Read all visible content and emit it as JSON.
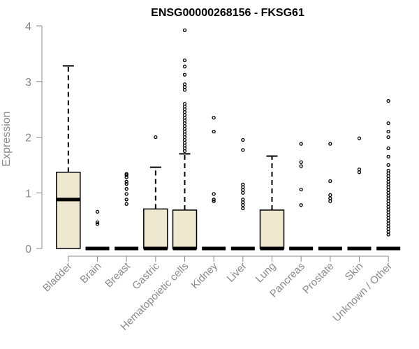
{
  "chart_data": {
    "type": "box",
    "title": "ENSG00000268156 - FKSG61",
    "ylabel": "Expression",
    "xlabel": "",
    "ylim": [
      0,
      4
    ],
    "yticks": [
      "0",
      "1",
      "2",
      "3",
      "4"
    ],
    "grid": false,
    "box_fill": "#efe8d0",
    "categories": [
      "Bladder",
      "Brain",
      "Breast",
      "Gastric",
      "Hematopoietic cells",
      "Kidney",
      "Liver",
      "Lung",
      "Pancreas",
      "Prostate",
      "Skin",
      "Unknown / Other"
    ],
    "boxes": [
      {
        "min": 0,
        "q1": 0,
        "median": 0.88,
        "q3": 1.37,
        "max": 3.28,
        "outliers": []
      },
      {
        "min": 0,
        "q1": 0,
        "median": 0,
        "q3": 0,
        "max": 0,
        "outliers": [
          0.44,
          0.47,
          0.66
        ]
      },
      {
        "min": 0,
        "q1": 0,
        "median": 0,
        "q3": 0,
        "max": 0,
        "outliers": [
          0.8,
          0.88,
          0.98,
          1.07,
          1.16,
          1.2,
          1.28,
          1.32,
          1.34
        ]
      },
      {
        "min": 0,
        "q1": 0,
        "median": 0,
        "q3": 0.71,
        "max": 1.46,
        "outliers": [
          2.0
        ]
      },
      {
        "min": 0,
        "q1": 0,
        "median": 0,
        "q3": 0.69,
        "max": 1.7,
        "outliers": [
          1.75,
          1.8,
          1.85,
          1.9,
          1.95,
          2.0,
          2.05,
          2.1,
          2.15,
          2.2,
          2.25,
          2.3,
          2.35,
          2.4,
          2.45,
          2.5,
          2.55,
          2.6,
          2.85,
          2.9,
          2.95,
          3.12,
          3.27,
          3.38,
          3.92
        ]
      },
      {
        "min": 0,
        "q1": 0,
        "median": 0,
        "q3": 0,
        "max": 0,
        "outliers": [
          0.85,
          0.88,
          0.98,
          2.1,
          2.35
        ]
      },
      {
        "min": 0,
        "q1": 0,
        "median": 0,
        "q3": 0,
        "max": 0,
        "outliers": [
          0.72,
          0.78,
          0.83,
          0.88,
          1.0,
          1.05,
          1.1,
          1.15,
          1.77,
          1.95
        ]
      },
      {
        "min": 0,
        "q1": 0,
        "median": 0,
        "q3": 0.69,
        "max": 1.66,
        "outliers": []
      },
      {
        "min": 0,
        "q1": 0,
        "median": 0,
        "q3": 0,
        "max": 0,
        "outliers": [
          0.78,
          1.06,
          1.48,
          1.55,
          1.88
        ]
      },
      {
        "min": 0,
        "q1": 0,
        "median": 0,
        "q3": 0,
        "max": 0,
        "outliers": [
          0.85,
          0.9,
          0.96,
          1.21,
          1.88
        ]
      },
      {
        "min": 0,
        "q1": 0,
        "median": 0,
        "q3": 0,
        "max": 0,
        "outliers": [
          1.37,
          1.42,
          1.98
        ]
      },
      {
        "min": 0,
        "q1": 0,
        "median": 0,
        "q3": 0,
        "max": 0,
        "outliers": [
          0.25,
          0.3,
          0.35,
          0.4,
          0.45,
          0.5,
          0.55,
          0.6,
          0.65,
          0.7,
          0.75,
          0.8,
          0.85,
          0.9,
          0.95,
          1.0,
          1.05,
          1.1,
          1.15,
          1.2,
          1.25,
          1.3,
          1.35,
          1.4,
          1.5,
          1.65,
          1.8,
          2.0,
          2.1,
          2.25,
          2.65
        ]
      }
    ]
  }
}
